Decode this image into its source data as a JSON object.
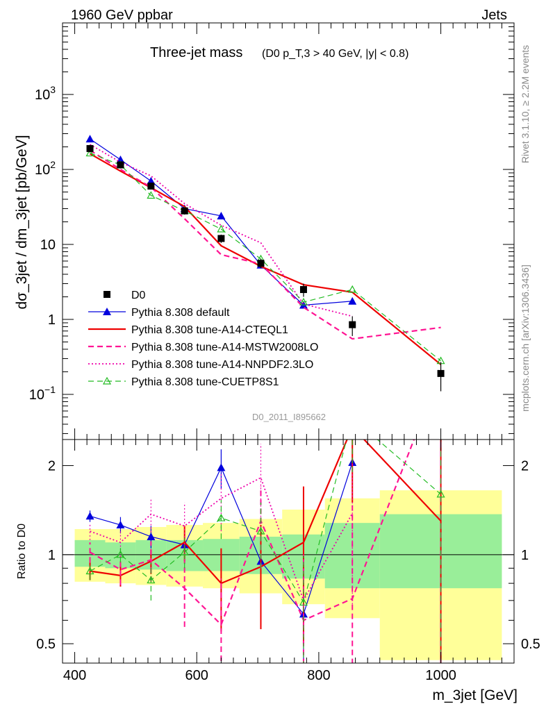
{
  "header": {
    "energy_label": "1960 GeV ppbar",
    "process_label": "Jets",
    "rivet_label": "Rivet 3.1.10, ≥ 2.2M events",
    "mcplots_label": "mcplots.cern.ch [arXiv:1306.3436]",
    "analysis_id": "D0_2011_I895662"
  },
  "chart_data": {
    "type": "line",
    "title": "Three-jet mass",
    "subtitle": "(D0 p_T,3 > 40 GeV, |y| < 0.8)",
    "xlabel": "m_3jet [GeV]",
    "ylabel": "dσ_3jet / dm_3jet [pb/GeV]",
    "ratio_ylabel": "Ratio to D0",
    "xlim": [
      380,
      1120
    ],
    "ylim": [
      0.025,
      9000
    ],
    "y_log": true,
    "ratio_ylim": [
      0.43,
      2.45
    ],
    "x_ticks": [
      400,
      600,
      800,
      1000
    ],
    "y_ticks": [
      {
        "value": 0.1,
        "base": "10",
        "exp": "−1"
      },
      {
        "value": 1,
        "base": "1",
        "exp": ""
      },
      {
        "value": 10,
        "base": "10",
        "exp": ""
      },
      {
        "value": 100,
        "base": "10",
        "exp": "2"
      },
      {
        "value": 1000,
        "base": "10",
        "exp": "3"
      }
    ],
    "ratio_ticks": [
      {
        "value": 0.5,
        "label": "0.5"
      },
      {
        "value": 1,
        "label": "1"
      },
      {
        "value": 2,
        "label": "2"
      }
    ],
    "legend_position": "bottom-left",
    "data": {
      "name": "D0",
      "color": "#000000",
      "x": [
        425,
        475,
        525,
        580,
        640,
        705,
        775,
        855,
        1000
      ],
      "y": [
        190,
        115,
        60,
        28,
        12,
        5.6,
        2.5,
        0.85,
        0.19
      ],
      "yerr": [
        22,
        12,
        6,
        3,
        1.5,
        0.8,
        0.5,
        0.25,
        0.08
      ]
    },
    "band_edges": [
      400,
      450,
      500,
      550,
      610,
      670,
      740,
      810,
      900,
      1100
    ],
    "band_stat": [
      [
        0.91,
        1.12
      ],
      [
        0.9,
        1.1
      ],
      [
        0.89,
        1.12
      ],
      [
        0.88,
        1.12
      ],
      [
        0.88,
        1.13
      ],
      [
        0.86,
        1.15
      ],
      [
        0.83,
        1.17
      ],
      [
        0.77,
        1.28
      ],
      [
        0.77,
        1.37
      ]
    ],
    "band_total": [
      [
        0.81,
        1.22
      ],
      [
        0.8,
        1.22
      ],
      [
        0.79,
        1.24
      ],
      [
        0.78,
        1.26
      ],
      [
        0.77,
        1.28
      ],
      [
        0.74,
        1.32
      ],
      [
        0.68,
        1.42
      ],
      [
        0.61,
        1.55
      ],
      [
        0.44,
        1.65
      ]
    ],
    "series": [
      {
        "name": "Pythia 8.308 default",
        "color": "#0000dd",
        "style": "solid",
        "width": 1.2,
        "marker": "triangle",
        "x": [
          425,
          475,
          525,
          580,
          640,
          705,
          775,
          855
        ],
        "y": [
          255,
          135,
          70,
          30,
          24,
          5.3,
          1.55,
          1.75
        ],
        "ratio": [
          1.35,
          1.26,
          1.15,
          1.08,
          1.97,
          0.95,
          0.63,
          2.05
        ],
        "ratio_err": [
          0.06,
          0.08,
          0.1,
          0.15,
          0.3,
          0.25,
          0.35,
          0.5
        ]
      },
      {
        "name": "Pythia 8.308 tune-A14-CTEQL1",
        "color": "#ee0000",
        "style": "solid",
        "width": 2.2,
        "marker": "none",
        "x": [
          425,
          475,
          525,
          580,
          640,
          705,
          775,
          855,
          1000
        ],
        "y": [
          162,
          95,
          57,
          32,
          9.6,
          5.1,
          2.9,
          2.3,
          0.25
        ],
        "ratio": [
          0.88,
          0.85,
          0.95,
          1.1,
          0.8,
          0.91,
          1.1,
          2.7,
          1.3
        ],
        "ratio_err": [
          0.06,
          0.07,
          0.09,
          0.15,
          0.25,
          0.35,
          0.6,
          1.2,
          2.5
        ]
      },
      {
        "name": "Pythia 8.308 tune-A14-MSTW2008LO",
        "color": "#ff1493",
        "style": "dash",
        "width": 2.2,
        "marker": "none",
        "x": [
          425,
          475,
          525,
          580,
          640,
          705,
          775,
          855,
          1000
        ],
        "y": [
          180,
          100,
          58,
          22,
          7.3,
          5.5,
          1.45,
          0.55,
          0.78
        ],
        "ratio": [
          1.02,
          0.89,
          0.96,
          0.77,
          0.58,
          1.3,
          0.6,
          0.71,
          4.2
        ],
        "ratio_err": [
          0.08,
          0.1,
          0.15,
          0.2,
          0.25,
          0.4,
          0.4,
          0.8,
          4.0
        ]
      },
      {
        "name": "Pythia 8.308 tune-A14-NNPDF2.3LO",
        "color": "#ee00aa",
        "style": "dot",
        "width": 1.8,
        "marker": "none",
        "x": [
          425,
          475,
          525,
          580,
          640,
          705,
          775,
          855
        ],
        "y": [
          215,
          125,
          82,
          35,
          18,
          10.5,
          1.6,
          1.1
        ],
        "ratio": [
          1.2,
          1.1,
          1.37,
          1.25,
          1.55,
          1.82,
          0.7,
          1.38
        ],
        "ratio_err": [
          0.08,
          0.12,
          0.18,
          0.25,
          0.35,
          0.55,
          0.25,
          0.7
        ]
      },
      {
        "name": "Pythia 8.308 tune-CUETP8S1",
        "color": "#22bb22",
        "style": "dash",
        "width": 1.2,
        "marker": "open-triangle",
        "x": [
          425,
          475,
          525,
          580,
          640,
          705,
          775,
          855,
          1000
        ],
        "y": [
          165,
          115,
          45,
          28,
          16,
          6.4,
          1.7,
          2.5,
          0.28
        ],
        "ratio": [
          0.88,
          1.0,
          0.82,
          1.02,
          1.33,
          1.2,
          0.69,
          2.9,
          1.6
        ],
        "ratio_err": [
          0.06,
          0.06,
          0.12,
          0.12,
          0.2,
          0.3,
          0.3,
          1.0,
          1.5
        ]
      }
    ]
  }
}
